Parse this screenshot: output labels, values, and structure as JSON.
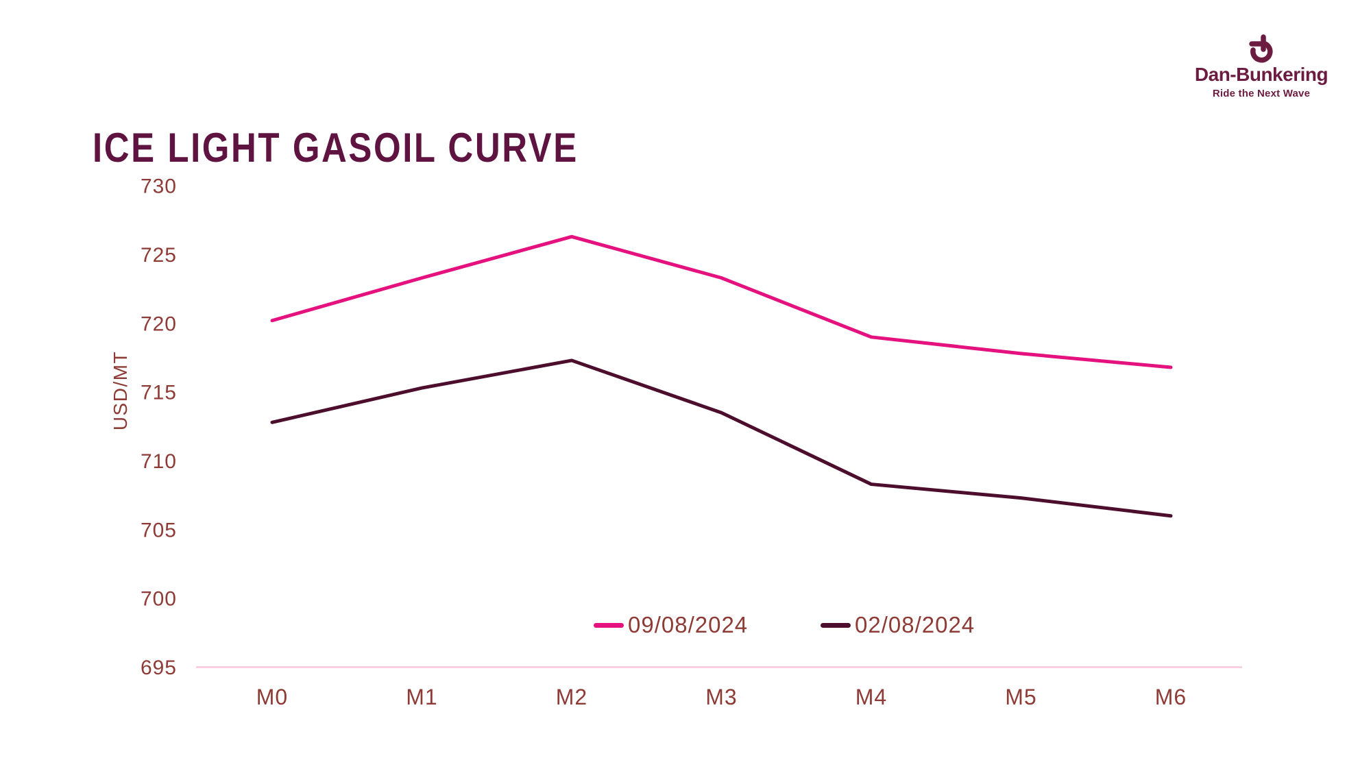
{
  "title": "ICE LIGHT GASOIL CURVE",
  "logo": {
    "name": "Dan-Bunkering",
    "tagline": "Ride the Next Wave"
  },
  "colors": {
    "title": "#5E1340",
    "logo": "#6B1C40",
    "axis_text": "#8E3B36",
    "baseline": "#F7C9DD",
    "series1": "#E4117E",
    "series2": "#4D0E2E"
  },
  "chart_data": {
    "type": "line",
    "title": "ICE LIGHT GASOIL CURVE",
    "xlabel": "",
    "ylabel": "USD/MT",
    "categories": [
      "M0",
      "M1",
      "M2",
      "M3",
      "M4",
      "M5",
      "M6"
    ],
    "series": [
      {
        "name": "09/08/2024",
        "color": "#E4117E",
        "values": [
          720.2,
          723.3,
          726.3,
          723.3,
          719.0,
          717.8,
          716.8
        ]
      },
      {
        "name": "02/08/2024",
        "color": "#4D0E2E",
        "values": [
          712.8,
          715.3,
          717.3,
          713.5,
          708.3,
          707.3,
          706.0
        ]
      }
    ],
    "ylim": [
      695,
      730
    ],
    "yticks": [
      695,
      700,
      705,
      710,
      715,
      720,
      725,
      730
    ],
    "grid": false,
    "legend_position": "bottom-center-inside"
  }
}
